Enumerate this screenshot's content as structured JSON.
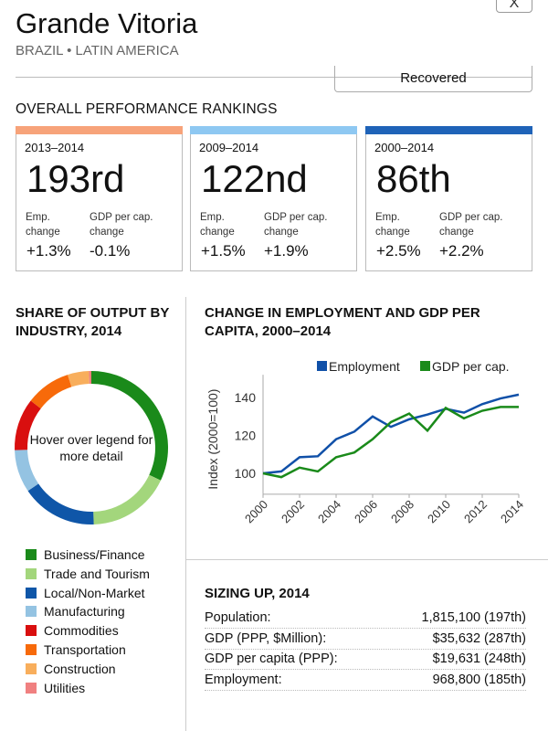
{
  "header": {
    "title": "Grande Vitoria",
    "subtitle": "BRAZIL • LATIN AMERICA",
    "close_label": "X",
    "status": "Recovered"
  },
  "rankings": {
    "heading": "OVERALL PERFORMANCE RANKINGS",
    "cards": [
      {
        "period": "2013–2014",
        "rank": "193rd",
        "emp_label": "Emp.\nchange",
        "gdp_label": "GDP per cap.\nchange",
        "emp": "+1.3%",
        "gdp": "-0.1%",
        "color": "#f7a37a"
      },
      {
        "period": "2009–2014",
        "rank": "122nd",
        "emp_label": "Emp.\nchange",
        "gdp_label": "GDP per cap.\nchange",
        "emp": "+1.5%",
        "gdp": "+1.9%",
        "color": "#8ec8f2"
      },
      {
        "period": "2000–2014",
        "rank": "86th",
        "emp_label": "Emp.\nchange",
        "gdp_label": "GDP per cap.\nchange",
        "emp": "+2.5%",
        "gdp": "+2.2%",
        "color": "#1f63b8"
      }
    ]
  },
  "industry": {
    "heading": "SHARE OF OUTPUT BY INDUSTRY, 2014",
    "center_text": "Hover over legend for more detail",
    "items": [
      {
        "label": "Business/Finance",
        "color": "#1a8a1a",
        "share": 32
      },
      {
        "label": "Trade and Tourism",
        "color": "#a3d67c",
        "share": 17.5
      },
      {
        "label": "Local/Non-Market",
        "color": "#0f56a8",
        "share": 16
      },
      {
        "label": "Manufacturing",
        "color": "#94c3e2",
        "share": 9
      },
      {
        "label": "Commodities",
        "color": "#d90f0f",
        "share": 11
      },
      {
        "label": "Transportation",
        "color": "#f76a0a",
        "share": 9.5
      },
      {
        "label": "Construction",
        "color": "#f8ae5c",
        "share": 4.5
      },
      {
        "label": "Utilities",
        "color": "#f08080",
        "share": 0.5
      }
    ]
  },
  "chart_data": {
    "type": "line",
    "title": "CHANGE IN EMPLOYMENT AND GDP PER CAPITA, 2000–2014",
    "ylabel": "Index (2000=100)",
    "xlabel": "",
    "x": [
      2000,
      2001,
      2002,
      2003,
      2004,
      2005,
      2006,
      2007,
      2008,
      2009,
      2010,
      2011,
      2012,
      2013,
      2014
    ],
    "xticks": [
      "2000",
      "2002",
      "2004",
      "2006",
      "2008",
      "2010",
      "2012",
      "2014"
    ],
    "yticks": [
      "100",
      "120",
      "140"
    ],
    "ylim": [
      89,
      152
    ],
    "legend": "top-right",
    "series": [
      {
        "name": "Employment",
        "color": "#1050a8",
        "values": [
          100,
          101,
          108.5,
          109,
          118,
          122,
          130,
          124.5,
          128.5,
          131,
          134,
          132,
          136.5,
          139.5,
          141.5
        ]
      },
      {
        "name": "GDP per cap.",
        "color": "#1a8a1a",
        "values": [
          100,
          98,
          103,
          101,
          108.5,
          111,
          118,
          127,
          131.5,
          122.5,
          134.5,
          129,
          133,
          135,
          135
        ]
      }
    ]
  },
  "sizing": {
    "heading": "SIZING UP, 2014",
    "rows": [
      {
        "label": "Population:",
        "value": "1,815,100 (197th)"
      },
      {
        "label": "GDP (PPP, $Million):",
        "value": "$35,632 (287th)"
      },
      {
        "label": "GDP per capita (PPP):",
        "value": "$19,631 (248th)"
      },
      {
        "label": "Employment:",
        "value": "968,800 (185th)"
      }
    ]
  }
}
